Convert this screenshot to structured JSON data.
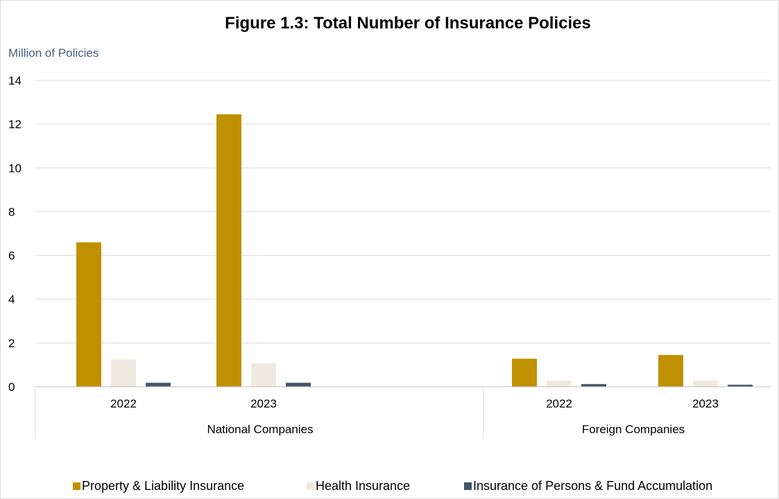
{
  "chart_data": {
    "type": "bar",
    "title": "Figure 1.3: Total Number of Insurance Policies",
    "ylabel": "Million of Policies",
    "xlabel": "",
    "ylim": [
      0,
      14
    ],
    "yticks": [
      0,
      2,
      4,
      6,
      8,
      10,
      12,
      14
    ],
    "grid": true,
    "legend_position": "bottom",
    "groups": [
      {
        "label": "National Companies",
        "categories": [
          "2022",
          "2023"
        ]
      },
      {
        "label": "Foreign Companies",
        "categories": [
          "2022",
          "2023"
        ]
      }
    ],
    "categories": [
      "2022",
      "2023",
      "2022",
      "2023"
    ],
    "series": [
      {
        "name": "Property & Liability Insurance",
        "color": "#bf9000",
        "values": [
          6.6,
          12.45,
          1.28,
          1.45
        ]
      },
      {
        "name": "Health Insurance",
        "color": "#efe9e0",
        "values": [
          1.25,
          1.07,
          0.28,
          0.29
        ]
      },
      {
        "name": "Insurance of Persons & Fund Accumulation",
        "color": "#44546a",
        "values": [
          0.18,
          0.18,
          0.12,
          0.09
        ]
      }
    ]
  }
}
